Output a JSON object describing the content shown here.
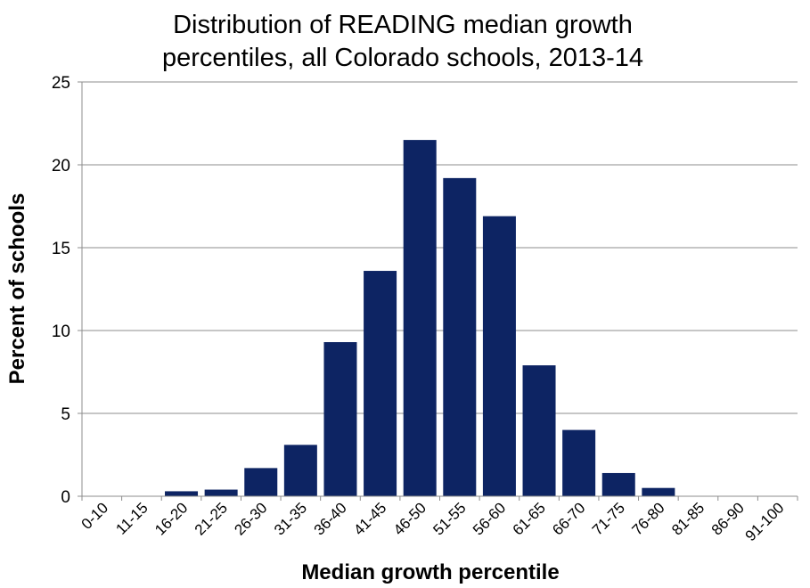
{
  "chart_data": {
    "type": "bar",
    "title_lines": [
      "Distribution of READING median growth",
      "percentiles, all Colorado schools, 2013-14"
    ],
    "xlabel": "Median growth percentile",
    "ylabel": "Percent of schools",
    "categories": [
      "0-10",
      "11-15",
      "16-20",
      "21-25",
      "26-30",
      "31-35",
      "36-40",
      "41-45",
      "46-50",
      "51-55",
      "56-60",
      "61-65",
      "66-70",
      "71-75",
      "76-80",
      "81-85",
      "86-90",
      "91-100"
    ],
    "values": [
      0,
      0,
      0.3,
      0.4,
      1.7,
      3.1,
      9.3,
      13.6,
      21.5,
      19.2,
      16.9,
      7.9,
      4.0,
      1.4,
      0.5,
      0,
      0,
      0
    ],
    "ylim": [
      0,
      25
    ],
    "yticks": [
      0,
      5,
      10,
      15,
      20,
      25
    ],
    "grid": true,
    "colors": {
      "bar": "#0d2463",
      "grid": "#8c8c8c"
    }
  }
}
